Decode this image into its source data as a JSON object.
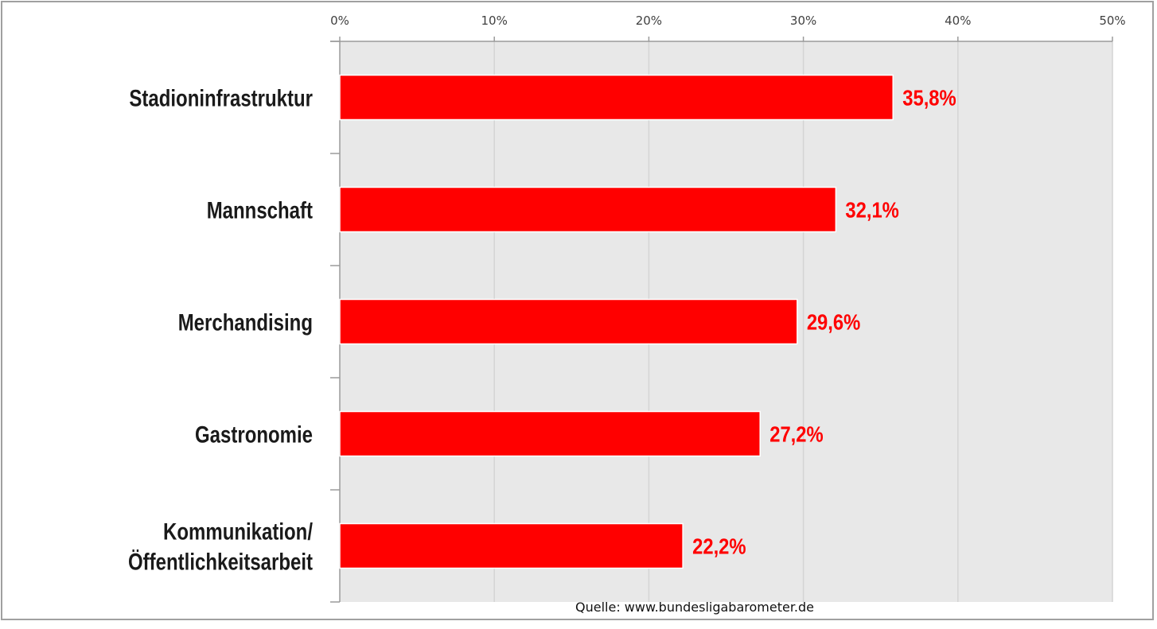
{
  "chart_data": {
    "type": "bar",
    "orientation": "horizontal",
    "categories": [
      "Stadioninfrastruktur",
      "Mannschaft",
      "Merchandising",
      "Gastronomie",
      "Kommunikation/\nÖffentlichkeitsarbeit"
    ],
    "values": [
      35.8,
      32.1,
      29.6,
      27.2,
      22.2
    ],
    "data_labels": [
      "35,8%",
      "32,1%",
      "29,6%",
      "27,2%",
      "22,2%"
    ],
    "xlim": [
      0,
      50
    ],
    "x_ticks": [
      "0%",
      "10%",
      "20%",
      "30%",
      "40%",
      "50%"
    ],
    "x_axis_position": "top",
    "grid": true,
    "title": "",
    "xlabel": "",
    "ylabel": "",
    "colors": {
      "bar": "#ff0000",
      "label": "#ff0000",
      "plot_bg": "#e8e8e8",
      "grid": "#d4d4d4",
      "axis": "#9a9a9a"
    }
  },
  "source": "Quelle: www.bundesligabarometer.de"
}
